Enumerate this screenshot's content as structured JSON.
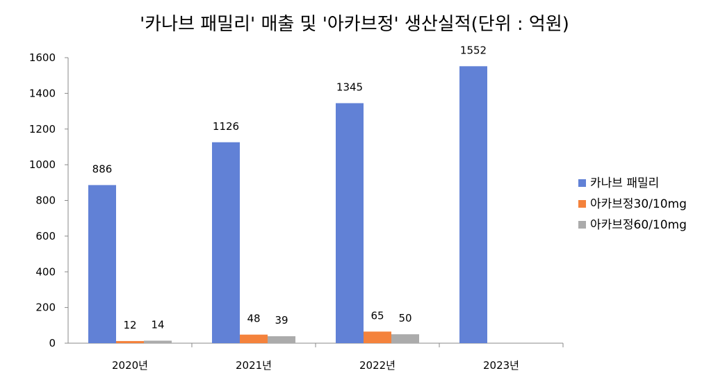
{
  "chart_data": {
    "type": "bar",
    "title": "'카나브 패밀리' 매출 및 '아카브정' 생산실적(단위 : 억원)",
    "categories": [
      "2020년",
      "2021년",
      "2022년",
      "2023년"
    ],
    "series": [
      {
        "name": "카나브 패밀리",
        "values": [
          886,
          1126,
          1345,
          1552
        ],
        "color": "#6181D6"
      },
      {
        "name": "아카브정30/10mg",
        "values": [
          12,
          48,
          65,
          null
        ],
        "color": "#F4823C"
      },
      {
        "name": "아카브정60/10mg",
        "values": [
          14,
          39,
          50,
          null
        ],
        "color": "#ABABAB"
      }
    ],
    "ylim": [
      0,
      1600
    ],
    "yticks": [
      "0",
      "200",
      "400",
      "600",
      "800",
      "1000",
      "1200",
      "1400",
      "1600"
    ],
    "grid": false,
    "legend_position": "right"
  }
}
